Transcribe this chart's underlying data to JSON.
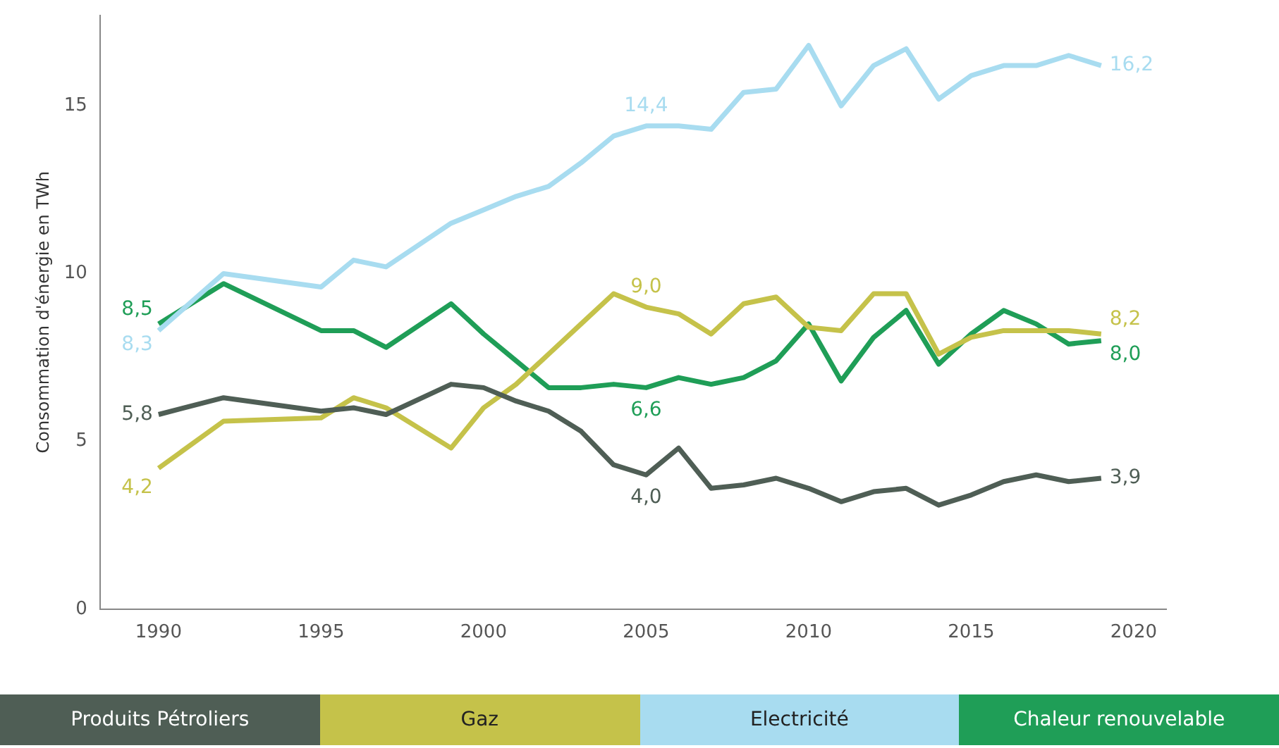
{
  "chart_data": {
    "type": "line",
    "ylabel": "Consommation d'énergie en TWh",
    "x": [
      1990,
      1992,
      1995,
      1996,
      1997,
      1999,
      2000,
      2001,
      2002,
      2003,
      2004,
      2005,
      2006,
      2007,
      2008,
      2009,
      2010,
      2011,
      2012,
      2013,
      2014,
      2015,
      2016,
      2017,
      2018,
      2019
    ],
    "series": [
      {
        "name": "Produits Pétroliers",
        "color": "#4f5e55",
        "values": [
          5.8,
          6.3,
          5.9,
          6.0,
          5.8,
          6.7,
          6.6,
          6.2,
          5.9,
          5.3,
          4.3,
          4.0,
          4.8,
          3.6,
          3.7,
          3.9,
          3.6,
          3.2,
          3.5,
          3.6,
          3.1,
          3.4,
          3.8,
          4.0,
          3.8,
          3.9
        ]
      },
      {
        "name": "Gaz",
        "color": "#c5c24a",
        "values": [
          4.2,
          5.6,
          5.7,
          6.3,
          6.0,
          4.8,
          6.0,
          6.7,
          7.6,
          8.5,
          9.4,
          9.0,
          8.8,
          8.2,
          9.1,
          9.3,
          8.4,
          8.3,
          9.4,
          9.4,
          7.6,
          8.1,
          8.3,
          8.3,
          8.3,
          8.2
        ]
      },
      {
        "name": "Electricité",
        "color": "#a8dcf0",
        "values": [
          8.3,
          10.0,
          9.6,
          10.4,
          10.2,
          11.5,
          11.9,
          12.3,
          12.6,
          13.3,
          14.1,
          14.4,
          14.4,
          14.3,
          15.4,
          15.5,
          16.8,
          15.0,
          16.2,
          16.7,
          15.2,
          15.9,
          16.2,
          16.2,
          16.5,
          16.2
        ]
      },
      {
        "name": "Chaleur renouvelable",
        "color": "#1f9e57",
        "values": [
          8.5,
          9.7,
          8.3,
          8.3,
          7.8,
          9.1,
          8.2,
          7.4,
          6.6,
          6.6,
          6.7,
          6.6,
          6.9,
          6.7,
          6.9,
          7.4,
          8.5,
          6.8,
          8.1,
          8.9,
          7.3,
          8.2,
          8.9,
          8.5,
          7.9,
          8.0
        ]
      }
    ],
    "annotations": [
      {
        "text": "5,8",
        "x": 1990,
        "y": 5.8
      },
      {
        "text": "4,2",
        "x": 1990,
        "y": 4.2
      },
      {
        "text": "8,3",
        "x": 1990,
        "y": 8.3
      },
      {
        "text": "8,5",
        "x": 1990,
        "y": 8.5
      },
      {
        "text": "14,4",
        "x": 2005,
        "y": 14.4
      },
      {
        "text": "9,0",
        "x": 2005,
        "y": 9.0
      },
      {
        "text": "6,6",
        "x": 2005,
        "y": 6.6
      },
      {
        "text": "4,0",
        "x": 2005,
        "y": 4.0
      },
      {
        "text": "16,2",
        "x": 2019,
        "y": 16.2
      },
      {
        "text": "8,2",
        "x": 2019,
        "y": 8.2
      },
      {
        "text": "8,0",
        "x": 2019,
        "y": 8.0
      },
      {
        "text": "3,9",
        "x": 2019,
        "y": 3.9
      }
    ],
    "xlim": [
      1988.2,
      2021
    ],
    "xticks": [
      1990,
      1995,
      2000,
      2005,
      2010,
      2015,
      2020
    ],
    "ylim": [
      0,
      17.7
    ],
    "yticks": [
      0,
      5,
      10,
      15
    ],
    "grid": false,
    "legend": "bottom",
    "marker": "none",
    "line_style": "solid"
  }
}
